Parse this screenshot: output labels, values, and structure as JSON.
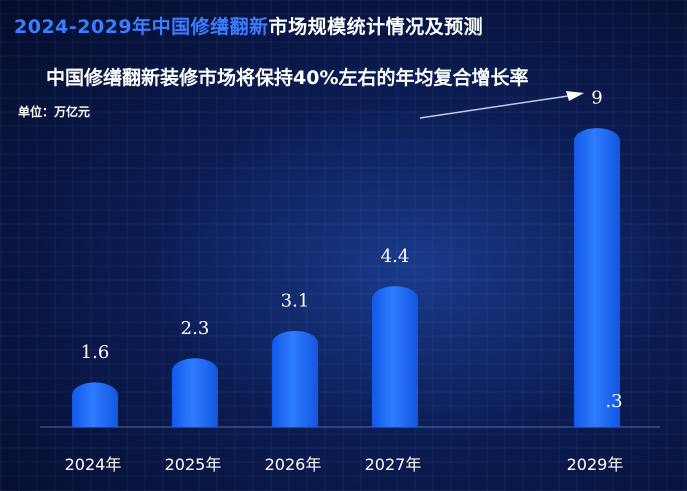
{
  "header": {
    "title_highlight": "2024-2029年中国修缮翻新",
    "title_rest": "市场规模统计情况及预测",
    "subtitle": "中国修缮翻新装修市场将保持40%左右的年均复合增长率",
    "unit": "单位：万亿元"
  },
  "chart_data": {
    "type": "bar",
    "title": "2024-2029年中国修缮翻新市场规模统计情况及预测",
    "subtitle": "中国修缮翻新装修市场将保持40%左右的年均复合增长率",
    "ylabel": "单位：万亿元",
    "categories": [
      "2024年",
      "2025年",
      "2026年",
      "2027年",
      "2029年"
    ],
    "values": [
      1.6,
      2.3,
      3.1,
      4.4,
      9
    ],
    "value_labels": [
      "1.6",
      "2.3",
      "3.1",
      "4.4",
      "9"
    ],
    "label_fragment": ".3",
    "ylim": [
      0,
      9.5
    ],
    "grid": false,
    "legend": "none",
    "bar_color": "#1a6cff",
    "bar_highlight": "#4d8cff"
  }
}
